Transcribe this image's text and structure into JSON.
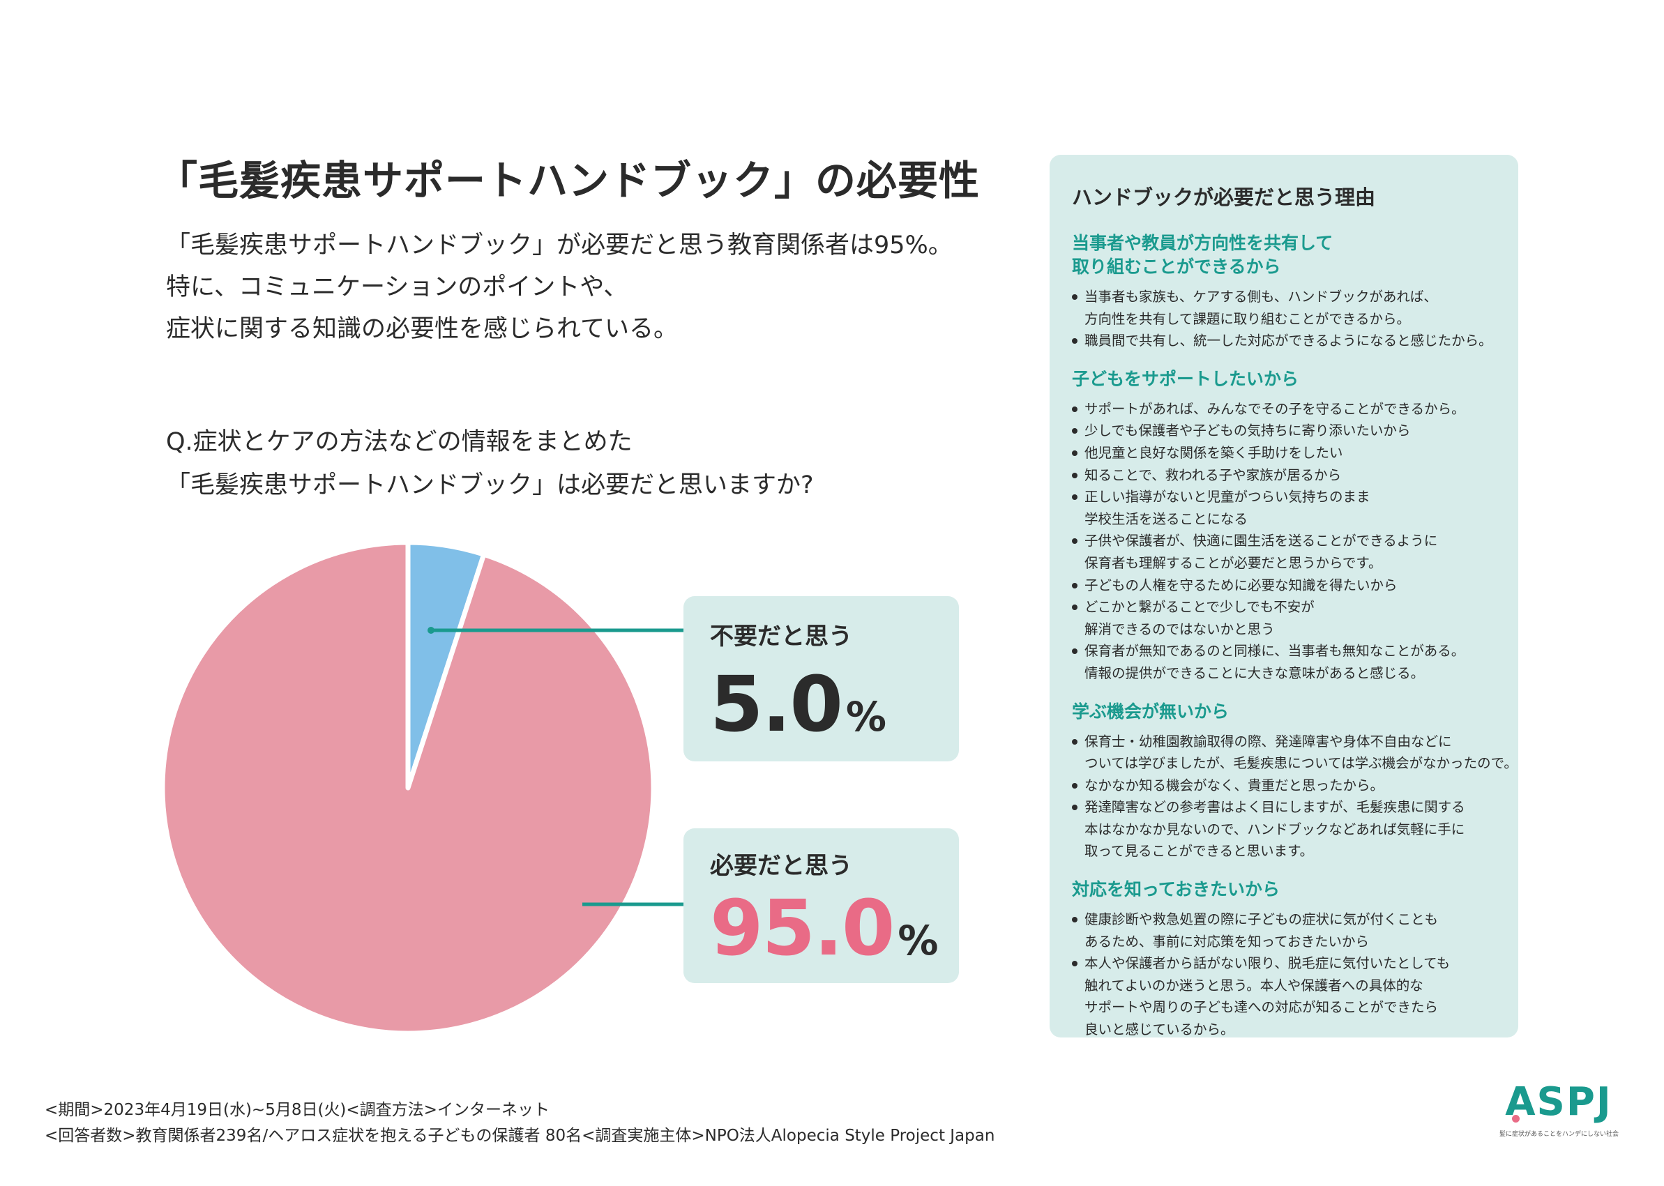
{
  "header": {
    "title": "「毛髪疾患サポートハンドブック」の必要性",
    "lead_lines": [
      "「毛髪疾患サポートハンドブック」が必要だと思う教育関係者は95%。",
      "特に、コミュニケーションのポイントや、",
      "症状に関する知識の必要性を感じられている。"
    ]
  },
  "question": {
    "lines": [
      "Q.症状とケアの方法などの情報をまとめた",
      "「毛髪疾患サポートハンドブック」は必要だと思いますか?"
    ]
  },
  "colors": {
    "pie_needed": "#e89aa7",
    "pie_not_needed": "#80bfe8",
    "accent_teal": "#1a9a8e",
    "accent_pink": "#e96b86"
  },
  "chart_data": {
    "type": "pie",
    "title": "「毛髪疾患サポートハンドブック」は必要だと思いますか?",
    "slices": [
      {
        "label": "不要だと思う",
        "value": 5.0,
        "display": "5.0",
        "unit": "%"
      },
      {
        "label": "必要だと思う",
        "value": 95.0,
        "display": "95.0",
        "unit": "%"
      }
    ]
  },
  "reasons": {
    "title": "ハンドブックが必要だと思う理由",
    "sections": [
      {
        "heading": [
          "当事者や教員が方向性を共有して",
          "取り組むことができるから"
        ],
        "items": [
          [
            "当事者も家族も、ケアする側も、ハンドブックがあれば、",
            "方向性を共有して課題に取り組むことができるから。"
          ],
          [
            "職員間で共有し、統一した対応ができるようになると感じたから。"
          ]
        ]
      },
      {
        "heading": [
          "子どもをサポートしたいから"
        ],
        "items": [
          [
            "サポートがあれば、みんなでその子を守ることができるから。"
          ],
          [
            "少しでも保護者や子どもの気持ちに寄り添いたいから"
          ],
          [
            "他児童と良好な関係を築く手助けをしたい"
          ],
          [
            "知ることで、救われる子や家族が居るから"
          ],
          [
            "正しい指導がないと児童がつらい気持ちのまま",
            "学校生活を送ることになる"
          ],
          [
            "子供や保護者が、快適に園生活を送ることができるように",
            "保育者も理解することが必要だと思うからです。"
          ],
          [
            "子どもの人権を守るために必要な知識を得たいから"
          ],
          [
            "どこかと繋がることで少しでも不安が",
            "解消できるのではないかと思う"
          ],
          [
            "保育者が無知であるのと同様に、当事者も無知なことがある。",
            "情報の提供ができることに大きな意味があると感じる。"
          ]
        ]
      },
      {
        "heading": [
          "学ぶ機会が無いから"
        ],
        "items": [
          [
            "保育士・幼稚園教諭取得の際、発達障害や身体不自由などに",
            "ついては学びましたが、毛髪疾患については学ぶ機会がなかったので。"
          ],
          [
            "なかなか知る機会がなく、貴重だと思ったから。"
          ],
          [
            "発達障害などの参考書はよく目にしますが、毛髪疾患に関する",
            "本はなかなか見ないので、ハンドブックなどあれば気軽に手に",
            "取って見ることができると思います。"
          ]
        ]
      },
      {
        "heading": [
          "対応を知っておきたいから"
        ],
        "items": [
          [
            "健康診断や救急処置の際に子どもの症状に気が付くことも",
            "あるため、事前に対応策を知っておきたいから"
          ],
          [
            "本人や保護者から話がない限り、脱毛症に気付いたとしても",
            "触れてよいのか迷うと思う。本人や保護者への具体的な",
            "サポートや周りの子ども達への対応が知ることができたら",
            "良いと感じているから。"
          ]
        ]
      }
    ]
  },
  "footer": {
    "line1": "<期間>2023年4月19日(水)~5月8日(火)<調査方法>インターネット",
    "line2": "<回答者数>教育関係者239名/ヘアロス症状を抱える子どもの保護者 80名<調査実施主体>NPO法人Alopecia Style Project Japan"
  },
  "logo": {
    "mark": "ASPJ",
    "tagline": "髪に症状があることをハンデにしない社会"
  }
}
